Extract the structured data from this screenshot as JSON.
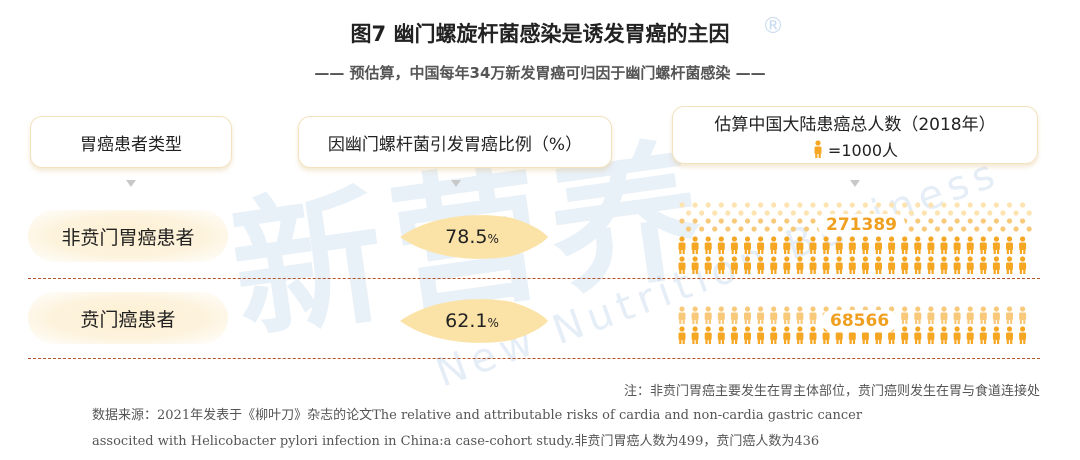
{
  "title": "图7 幽门螺旋杆菌感染是诱发胃癌的主因",
  "subtitle": "—— 预估算，中国每年34万新发胃癌可归因于幽门螺杆菌感染 ——",
  "headers": {
    "type": "胃癌患者类型",
    "ratio": "因幽门螺杆菌引发胃癌比例（%）",
    "count": "估算中国大陆患癌总人数（2018年）",
    "unit": "=1000人"
  },
  "chart_data": {
    "type": "table",
    "rows": [
      {
        "category": "非贲门胃癌患者",
        "ratio": 78.5,
        "ratio_unit": "%",
        "count": 271389
      },
      {
        "category": "贲门癌患者",
        "ratio": 62.1,
        "ratio_unit": "%",
        "count": 68566
      }
    ],
    "icon_unit": 1000
  },
  "display": {
    "row1_ratio": "78.5",
    "row2_ratio": "62.1",
    "pct_sign": "%",
    "row1_count": "271389",
    "row2_count": "68566"
  },
  "note": "注：非贲门胃癌主要发生在胃主体部位，贲门癌则发生在胃与食道连接处",
  "source_line1": "数据来源：2021年发表于《柳叶刀》杂志的论文The relative and attributable risks of cardia and non-cardia gastric cancer",
  "source_line2": "associted with Helicobacter pylori infection in China:a case-cohort study.非贲门胃癌人数为499，贲门癌人数为436",
  "watermark": "新营养",
  "watermark_en": "New Nutrition Business",
  "colors": {
    "accent": "#f5a623",
    "accent_light": "#fde3b0",
    "leaf": "#fbe3a8",
    "divider": "#b3532c"
  },
  "icons": {
    "person": "person-icon",
    "registered": "registered-icon"
  }
}
